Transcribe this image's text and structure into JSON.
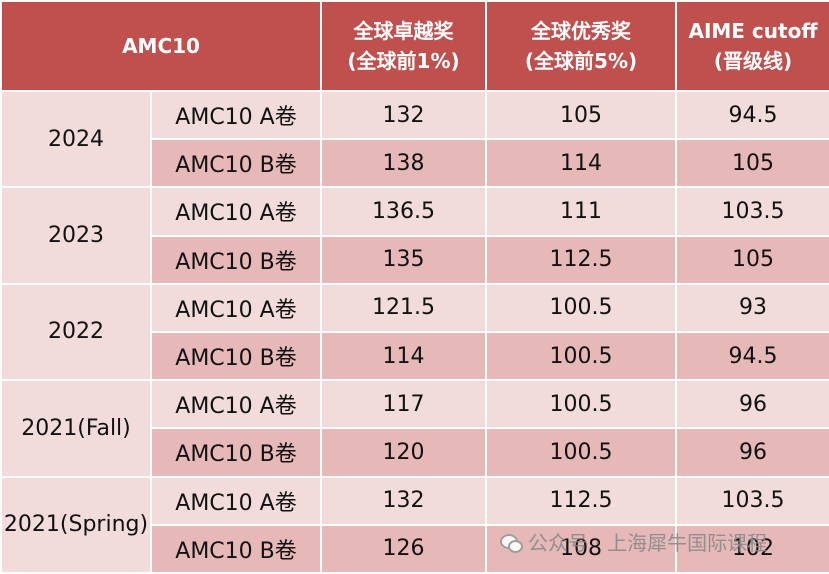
{
  "header": {
    "col1": "AMC10",
    "col2_line1": "全球卓越奖",
    "col2_line2": "(全球前1%)",
    "col3_line1": "全球优秀奖",
    "col3_line2": "(全球前5%)",
    "col4_line1": "AIME cutoff",
    "col4_line2": "(晋级线)"
  },
  "rows": [
    {
      "year": "2024",
      "a": {
        "paper": "AMC10 A卷",
        "top1": "132",
        "top5": "105",
        "aime": "94.5"
      },
      "b": {
        "paper": "AMC10 B卷",
        "top1": "138",
        "top5": "114",
        "aime": "105"
      }
    },
    {
      "year": "2023",
      "a": {
        "paper": "AMC10 A卷",
        "top1": "136.5",
        "top5": "111",
        "aime": "103.5"
      },
      "b": {
        "paper": "AMC10 B卷",
        "top1": "135",
        "top5": "112.5",
        "aime": "105"
      }
    },
    {
      "year": "2022",
      "a": {
        "paper": "AMC10 A卷",
        "top1": "121.5",
        "top5": "100.5",
        "aime": "93"
      },
      "b": {
        "paper": "AMC10 B卷",
        "top1": "114",
        "top5": "100.5",
        "aime": "94.5"
      }
    },
    {
      "year": "2021(Fall)",
      "a": {
        "paper": "AMC10 A卷",
        "top1": "117",
        "top5": "100.5",
        "aime": "96"
      },
      "b": {
        "paper": "AMC10 B卷",
        "top1": "120",
        "top5": "100.5",
        "aime": "96"
      }
    },
    {
      "year": "2021(Spring)",
      "a": {
        "paper": "AMC10 A卷",
        "top1": "132",
        "top5": "112.5",
        "aime": "103.5"
      },
      "b": {
        "paper": "AMC10 B卷",
        "top1": "126",
        "top5": "108",
        "aime": "102"
      }
    }
  ],
  "watermark": {
    "text": "公众号 · 上海犀牛国际课程",
    "icon": "wechat-icon"
  },
  "colors": {
    "header_bg": "#c0504d",
    "row_light": "#f1dcdb",
    "row_dark": "#e6b9b8"
  }
}
